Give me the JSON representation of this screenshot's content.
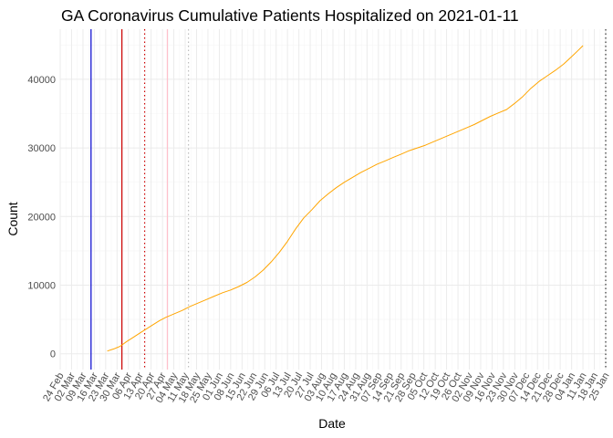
{
  "colors": {
    "background": "#ffffff",
    "grid_major": "#ebebeb",
    "grid_minor": "#f5f5f5",
    "series": "#ffa500",
    "vline_blue": "#0000cd",
    "vline_red": "#cd0000",
    "vline_dotted_red": "#cd0000",
    "vline_pink": "#ffc0cb",
    "vline_gray": "#bebebe",
    "vline_dark": "#333333",
    "text": "#000000",
    "tick_text": "#4d4d4d"
  },
  "chart_data": {
    "type": "line",
    "title": "GA Coronavirus Cumulative Patients Hospitalized on 2021-01-11",
    "xlabel": "Date",
    "ylabel": "Count",
    "x_axis_type": "date",
    "xlim": [
      "2020-02-24",
      "2021-01-25"
    ],
    "ylim": [
      -2300,
      47300
    ],
    "y_ticks": [
      0,
      10000,
      20000,
      30000,
      40000
    ],
    "x_ticks": [
      "2020-02-24",
      "2020-03-02",
      "2020-03-09",
      "2020-03-16",
      "2020-03-23",
      "2020-03-30",
      "2020-04-06",
      "2020-04-13",
      "2020-04-20",
      "2020-04-27",
      "2020-05-04",
      "2020-05-11",
      "2020-05-18",
      "2020-05-25",
      "2020-06-01",
      "2020-06-08",
      "2020-06-15",
      "2020-06-22",
      "2020-06-29",
      "2020-07-06",
      "2020-07-13",
      "2020-07-20",
      "2020-07-27",
      "2020-08-03",
      "2020-08-10",
      "2020-08-17",
      "2020-08-24",
      "2020-08-31",
      "2020-09-07",
      "2020-09-14",
      "2020-09-21",
      "2020-09-28",
      "2020-10-05",
      "2020-10-12",
      "2020-10-19",
      "2020-10-26",
      "2020-11-02",
      "2020-11-09",
      "2020-11-16",
      "2020-11-23",
      "2020-11-30",
      "2020-12-07",
      "2020-12-14",
      "2020-12-21",
      "2020-12-28",
      "2021-01-04",
      "2021-01-11",
      "2021-01-18",
      "2021-01-25"
    ],
    "x_tick_labels": [
      "24 Feb",
      "02 Mar",
      "09 Mar",
      "16 Mar",
      "23 Mar",
      "30 Mar",
      "06 Apr",
      "13 Apr",
      "20 Apr",
      "27 Apr",
      "04 May",
      "11 May",
      "18 May",
      "25 May",
      "01 Jun",
      "08 Jun",
      "15 Jun",
      "22 Jun",
      "29 Jun",
      "06 Jul",
      "13 Jul",
      "20 Jul",
      "27 Jul",
      "03 Aug",
      "10 Aug",
      "17 Aug",
      "24 Aug",
      "31 Aug",
      "07 Sep",
      "14 Sep",
      "21 Sep",
      "28 Sep",
      "05 Oct",
      "12 Oct",
      "19 Oct",
      "26 Oct",
      "02 Nov",
      "09 Nov",
      "16 Nov",
      "23 Nov",
      "30 Nov",
      "07 Dec",
      "14 Dec",
      "21 Dec",
      "28 Dec",
      "04 Jan",
      "11 Jan",
      "18 Jan",
      "25 Jan"
    ],
    "grid": true,
    "legend": "none",
    "vlines": [
      {
        "x": "2020-03-14",
        "color": "#0000cd",
        "style": "solid"
      },
      {
        "x": "2020-04-02",
        "color": "#cd0000",
        "style": "solid"
      },
      {
        "x": "2020-04-16",
        "color": "#cd0000",
        "style": "dotted"
      },
      {
        "x": "2020-04-30",
        "color": "#ffc0cb",
        "style": "solid"
      },
      {
        "x": "2020-05-13",
        "color": "#bebebe",
        "style": "dotted"
      },
      {
        "x": "2021-01-25",
        "color": "#333333",
        "style": "dotted"
      }
    ],
    "series": [
      {
        "color": "#ffa500",
        "x": [
          "2020-03-24",
          "2020-03-28",
          "2020-04-01",
          "2020-04-05",
          "2020-04-09",
          "2020-04-13",
          "2020-04-17",
          "2020-04-21",
          "2020-04-25",
          "2020-04-29",
          "2020-05-04",
          "2020-05-09",
          "2020-05-14",
          "2020-05-19",
          "2020-05-24",
          "2020-05-29",
          "2020-06-03",
          "2020-06-08",
          "2020-06-13",
          "2020-06-18",
          "2020-06-23",
          "2020-06-28",
          "2020-07-03",
          "2020-07-08",
          "2020-07-13",
          "2020-07-18",
          "2020-07-23",
          "2020-07-28",
          "2020-08-02",
          "2020-08-07",
          "2020-08-12",
          "2020-08-17",
          "2020-08-22",
          "2020-08-27",
          "2020-09-01",
          "2020-09-06",
          "2020-09-11",
          "2020-09-16",
          "2020-09-21",
          "2020-09-26",
          "2020-10-01",
          "2020-10-06",
          "2020-10-11",
          "2020-10-16",
          "2020-10-21",
          "2020-10-26",
          "2020-10-31",
          "2020-11-05",
          "2020-11-10",
          "2020-11-15",
          "2020-11-20",
          "2020-11-25",
          "2020-11-30",
          "2020-12-05",
          "2020-12-10",
          "2020-12-15",
          "2020-12-20",
          "2020-12-25",
          "2020-12-30",
          "2021-01-04",
          "2021-01-08",
          "2021-01-11"
        ],
        "values": [
          400,
          700,
          1100,
          1800,
          2400,
          3000,
          3600,
          4200,
          4800,
          5300,
          5800,
          6300,
          6900,
          7400,
          7900,
          8400,
          8900,
          9300,
          9800,
          10400,
          11200,
          12200,
          13400,
          14800,
          16400,
          18200,
          19800,
          21000,
          22300,
          23300,
          24200,
          25000,
          25700,
          26400,
          27000,
          27600,
          28100,
          28600,
          29100,
          29600,
          30000,
          30400,
          30900,
          31400,
          31900,
          32400,
          32900,
          33400,
          34000,
          34600,
          35100,
          35600,
          36500,
          37500,
          38700,
          39700,
          40500,
          41300,
          42200,
          43300,
          44200,
          44900
        ]
      }
    ]
  }
}
